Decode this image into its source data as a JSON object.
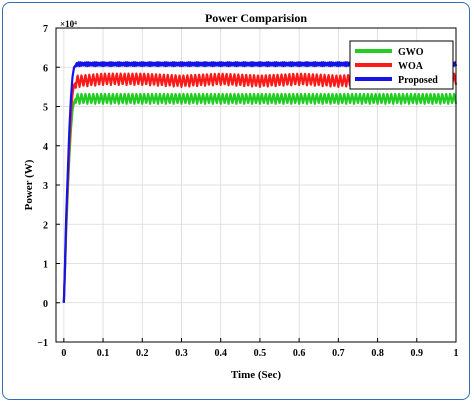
{
  "chart_data": {
    "type": "line",
    "title": "Power Comparision",
    "xlabel": "Time (Sec)",
    "ylabel": "Power (W)",
    "y_multiplier": "×10⁴",
    "xlim": [
      -0.02,
      1
    ],
    "ylim": [
      -1,
      7
    ],
    "xticks": [
      "0",
      "0.1",
      "0.2",
      "0.3",
      "0.4",
      "0.5",
      "0.6",
      "0.7",
      "0.8",
      "0.9",
      "1"
    ],
    "xtick_values": [
      0,
      0.1,
      0.2,
      0.3,
      0.4,
      0.5,
      0.6,
      0.7,
      0.8,
      0.9,
      1
    ],
    "yticks": [
      "−1",
      "0",
      "1",
      "2",
      "3",
      "4",
      "5",
      "6",
      "7"
    ],
    "ytick_values": [
      -1,
      0,
      1,
      2,
      3,
      4,
      5,
      6,
      7
    ],
    "grid": true,
    "legend_position": "top-right",
    "series": [
      {
        "name": "GWO",
        "color": "#22cc22",
        "x": [
          0,
          0.003,
          0.006,
          0.01,
          0.014,
          0.018,
          0.022,
          0.026,
          0.03,
          0.035,
          0.04,
          0.1,
          0.2,
          0.3,
          0.4,
          0.5,
          0.6,
          0.7,
          0.8,
          0.9,
          1
        ],
        "y": [
          0,
          0.8,
          1.8,
          2.8,
          3.7,
          4.4,
          4.9,
          5.1,
          5.2,
          5.2,
          5.2,
          5.2,
          5.2,
          5.2,
          5.2,
          5.2,
          5.2,
          5.2,
          5.2,
          5.2,
          5.2
        ],
        "ripple_amplitude": 0.13,
        "ripple_period": 0.01
      },
      {
        "name": "WOA",
        "color": "#ff1a1a",
        "x": [
          0,
          0.003,
          0.006,
          0.01,
          0.014,
          0.018,
          0.022,
          0.026,
          0.03,
          0.035,
          0.04,
          0.1,
          0.2,
          0.3,
          0.4,
          0.5,
          0.6,
          0.7,
          0.8,
          0.9,
          1
        ],
        "y": [
          0,
          0.9,
          2.0,
          3.0,
          4.0,
          4.8,
          5.3,
          5.55,
          5.6,
          5.65,
          5.65,
          5.7,
          5.7,
          5.65,
          5.7,
          5.65,
          5.7,
          5.65,
          5.7,
          5.65,
          5.7
        ],
        "ripple_amplitude": 0.15,
        "ripple_period": 0.01
      },
      {
        "name": "Proposed",
        "color": "#1414e6",
        "x": [
          0,
          0.003,
          0.006,
          0.01,
          0.014,
          0.018,
          0.022,
          0.026,
          0.03,
          0.035,
          0.04,
          0.1,
          0.2,
          0.3,
          0.4,
          0.5,
          0.6,
          0.7,
          0.8,
          0.9,
          1
        ],
        "y": [
          0,
          1.0,
          2.2,
          3.3,
          4.4,
          5.2,
          5.75,
          6.0,
          6.05,
          6.08,
          6.08,
          6.08,
          6.08,
          6.08,
          6.08,
          6.08,
          6.08,
          6.08,
          6.08,
          6.08,
          6.08
        ],
        "ripple_amplitude": 0.05,
        "ripple_period": 0.005
      }
    ]
  }
}
